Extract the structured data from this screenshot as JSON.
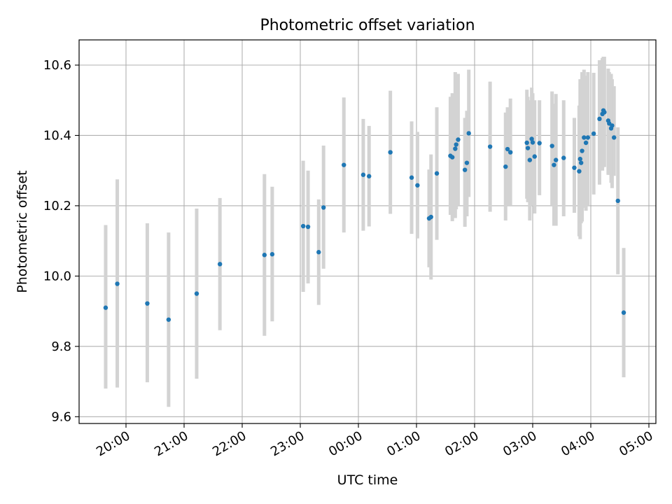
{
  "chart_data": {
    "type": "scatter",
    "title": "Photometric offset variation",
    "xlabel": "UTC time",
    "ylabel": "Photometric offset",
    "x_ticks": [
      "20:00",
      "21:00",
      "22:00",
      "23:00",
      "00:00",
      "01:00",
      "02:00",
      "03:00",
      "04:00",
      "05:00"
    ],
    "y_ticks": [
      "9.6",
      "9.8",
      "10.0",
      "10.2",
      "10.4",
      "10.6"
    ],
    "grid": true,
    "errorbars": true,
    "colors": {
      "points": "#1f77b4",
      "errorbars": "#d3d3d3",
      "grid": "#b0b0b0"
    },
    "series": [
      {
        "points": [
          {
            "t": "19:39",
            "y": 9.91,
            "lo": 9.68,
            "hi": 10.145
          },
          {
            "t": "19:51",
            "y": 9.978,
            "lo": 9.683,
            "hi": 10.275
          },
          {
            "t": "20:22",
            "y": 9.922,
            "lo": 9.698,
            "hi": 10.15
          },
          {
            "t": "20:44",
            "y": 9.876,
            "lo": 9.628,
            "hi": 10.124
          },
          {
            "t": "21:13",
            "y": 9.95,
            "lo": 9.708,
            "hi": 10.192
          },
          {
            "t": "21:37",
            "y": 10.034,
            "lo": 9.846,
            "hi": 10.222
          },
          {
            "t": "22:23",
            "y": 10.06,
            "lo": 9.83,
            "hi": 10.29
          },
          {
            "t": "22:31",
            "y": 10.062,
            "lo": 9.871,
            "hi": 10.254
          },
          {
            "t": "23:03",
            "y": 10.142,
            "lo": 9.955,
            "hi": 10.328
          },
          {
            "t": "23:08",
            "y": 10.14,
            "lo": 9.979,
            "hi": 10.3
          },
          {
            "t": "23:19",
            "y": 10.068,
            "lo": 9.918,
            "hi": 10.218
          },
          {
            "t": "23:24",
            "y": 10.195,
            "lo": 10.021,
            "hi": 10.371
          },
          {
            "t": "23:45",
            "y": 10.316,
            "lo": 10.124,
            "hi": 10.508
          },
          {
            "t": "00:05",
            "y": 10.288,
            "lo": 10.129,
            "hi": 10.447
          },
          {
            "t": "00:11",
            "y": 10.284,
            "lo": 10.141,
            "hi": 10.427
          },
          {
            "t": "00:33",
            "y": 10.352,
            "lo": 10.177,
            "hi": 10.527
          },
          {
            "t": "00:55",
            "y": 10.28,
            "lo": 10.12,
            "hi": 10.44
          },
          {
            "t": "01:01",
            "y": 10.258,
            "lo": 10.107,
            "hi": 10.41
          },
          {
            "t": "01:13",
            "y": 10.164,
            "lo": 10.025,
            "hi": 10.303
          },
          {
            "t": "01:15",
            "y": 10.168,
            "lo": 9.99,
            "hi": 10.346
          },
          {
            "t": "01:21",
            "y": 10.292,
            "lo": 10.103,
            "hi": 10.48
          },
          {
            "t": "01:35",
            "y": 10.342,
            "lo": 10.174,
            "hi": 10.51
          },
          {
            "t": "01:37",
            "y": 10.338,
            "lo": 10.156,
            "hi": 10.52
          },
          {
            "t": "01:40",
            "y": 10.362,
            "lo": 10.165,
            "hi": 10.58
          },
          {
            "t": "01:41",
            "y": 10.374,
            "lo": 10.19,
            "hi": 10.57
          },
          {
            "t": "01:43",
            "y": 10.388,
            "lo": 10.2,
            "hi": 10.575
          },
          {
            "t": "01:50",
            "y": 10.302,
            "lo": 10.14,
            "hi": 10.45
          },
          {
            "t": "01:52",
            "y": 10.322,
            "lo": 10.17,
            "hi": 10.47
          },
          {
            "t": "01:54",
            "y": 10.406,
            "lo": 10.225,
            "hi": 10.587
          },
          {
            "t": "02:16",
            "y": 10.368,
            "lo": 10.183,
            "hi": 10.553
          },
          {
            "t": "02:32",
            "y": 10.311,
            "lo": 10.158,
            "hi": 10.465
          },
          {
            "t": "02:34",
            "y": 10.361,
            "lo": 10.2,
            "hi": 10.48
          },
          {
            "t": "02:37",
            "y": 10.352,
            "lo": 10.2,
            "hi": 10.505
          },
          {
            "t": "02:54",
            "y": 10.379,
            "lo": 10.22,
            "hi": 10.53
          },
          {
            "t": "02:55",
            "y": 10.364,
            "lo": 10.21,
            "hi": 10.51
          },
          {
            "t": "02:57",
            "y": 10.33,
            "lo": 10.158,
            "hi": 10.5
          },
          {
            "t": "02:59",
            "y": 10.39,
            "lo": 10.2,
            "hi": 10.536
          },
          {
            "t": "03:00",
            "y": 10.38,
            "lo": 10.23,
            "hi": 10.52
          },
          {
            "t": "03:02",
            "y": 10.34,
            "lo": 10.178,
            "hi": 10.5
          },
          {
            "t": "03:07",
            "y": 10.378,
            "lo": 10.23,
            "hi": 10.5
          },
          {
            "t": "03:20",
            "y": 10.37,
            "lo": 10.2,
            "hi": 10.525
          },
          {
            "t": "03:22",
            "y": 10.316,
            "lo": 10.143,
            "hi": 10.49
          },
          {
            "t": "03:24",
            "y": 10.33,
            "lo": 10.143,
            "hi": 10.518
          },
          {
            "t": "03:32",
            "y": 10.336,
            "lo": 10.17,
            "hi": 10.5
          },
          {
            "t": "03:43",
            "y": 10.308,
            "lo": 10.18,
            "hi": 10.45
          },
          {
            "t": "03:48",
            "y": 10.298,
            "lo": 10.113,
            "hi": 10.485
          },
          {
            "t": "03:49",
            "y": 10.333,
            "lo": 10.105,
            "hi": 10.56
          },
          {
            "t": "03:50",
            "y": 10.322,
            "lo": 10.15,
            "hi": 10.55
          },
          {
            "t": "03:51",
            "y": 10.356,
            "lo": 10.155,
            "hi": 10.58
          },
          {
            "t": "03:53",
            "y": 10.394,
            "lo": 10.194,
            "hi": 10.587
          },
          {
            "t": "03:55",
            "y": 10.379,
            "lo": 10.186,
            "hi": 10.57
          },
          {
            "t": "03:57",
            "y": 10.394,
            "lo": 10.2,
            "hi": 10.58
          },
          {
            "t": "04:03",
            "y": 10.405,
            "lo": 10.232,
            "hi": 10.578
          },
          {
            "t": "04:09",
            "y": 10.447,
            "lo": 10.26,
            "hi": 10.614
          },
          {
            "t": "04:12",
            "y": 10.461,
            "lo": 10.3,
            "hi": 10.62
          },
          {
            "t": "04:13",
            "y": 10.471,
            "lo": 10.31,
            "hi": 10.624
          },
          {
            "t": "04:14",
            "y": 10.466,
            "lo": 10.31,
            "hi": 10.624
          },
          {
            "t": "04:18",
            "y": 10.442,
            "lo": 10.288,
            "hi": 10.59
          },
          {
            "t": "04:19",
            "y": 10.434,
            "lo": 10.288,
            "hi": 10.58
          },
          {
            "t": "04:21",
            "y": 10.42,
            "lo": 10.265,
            "hi": 10.575
          },
          {
            "t": "04:22",
            "y": 10.428,
            "lo": 10.25,
            "hi": 10.56
          },
          {
            "t": "04:24",
            "y": 10.394,
            "lo": 10.285,
            "hi": 10.54
          },
          {
            "t": "04:28",
            "y": 10.214,
            "lo": 10.005,
            "hi": 10.423
          },
          {
            "t": "04:34",
            "y": 9.896,
            "lo": 9.712,
            "hi": 10.08
          }
        ]
      }
    ]
  }
}
